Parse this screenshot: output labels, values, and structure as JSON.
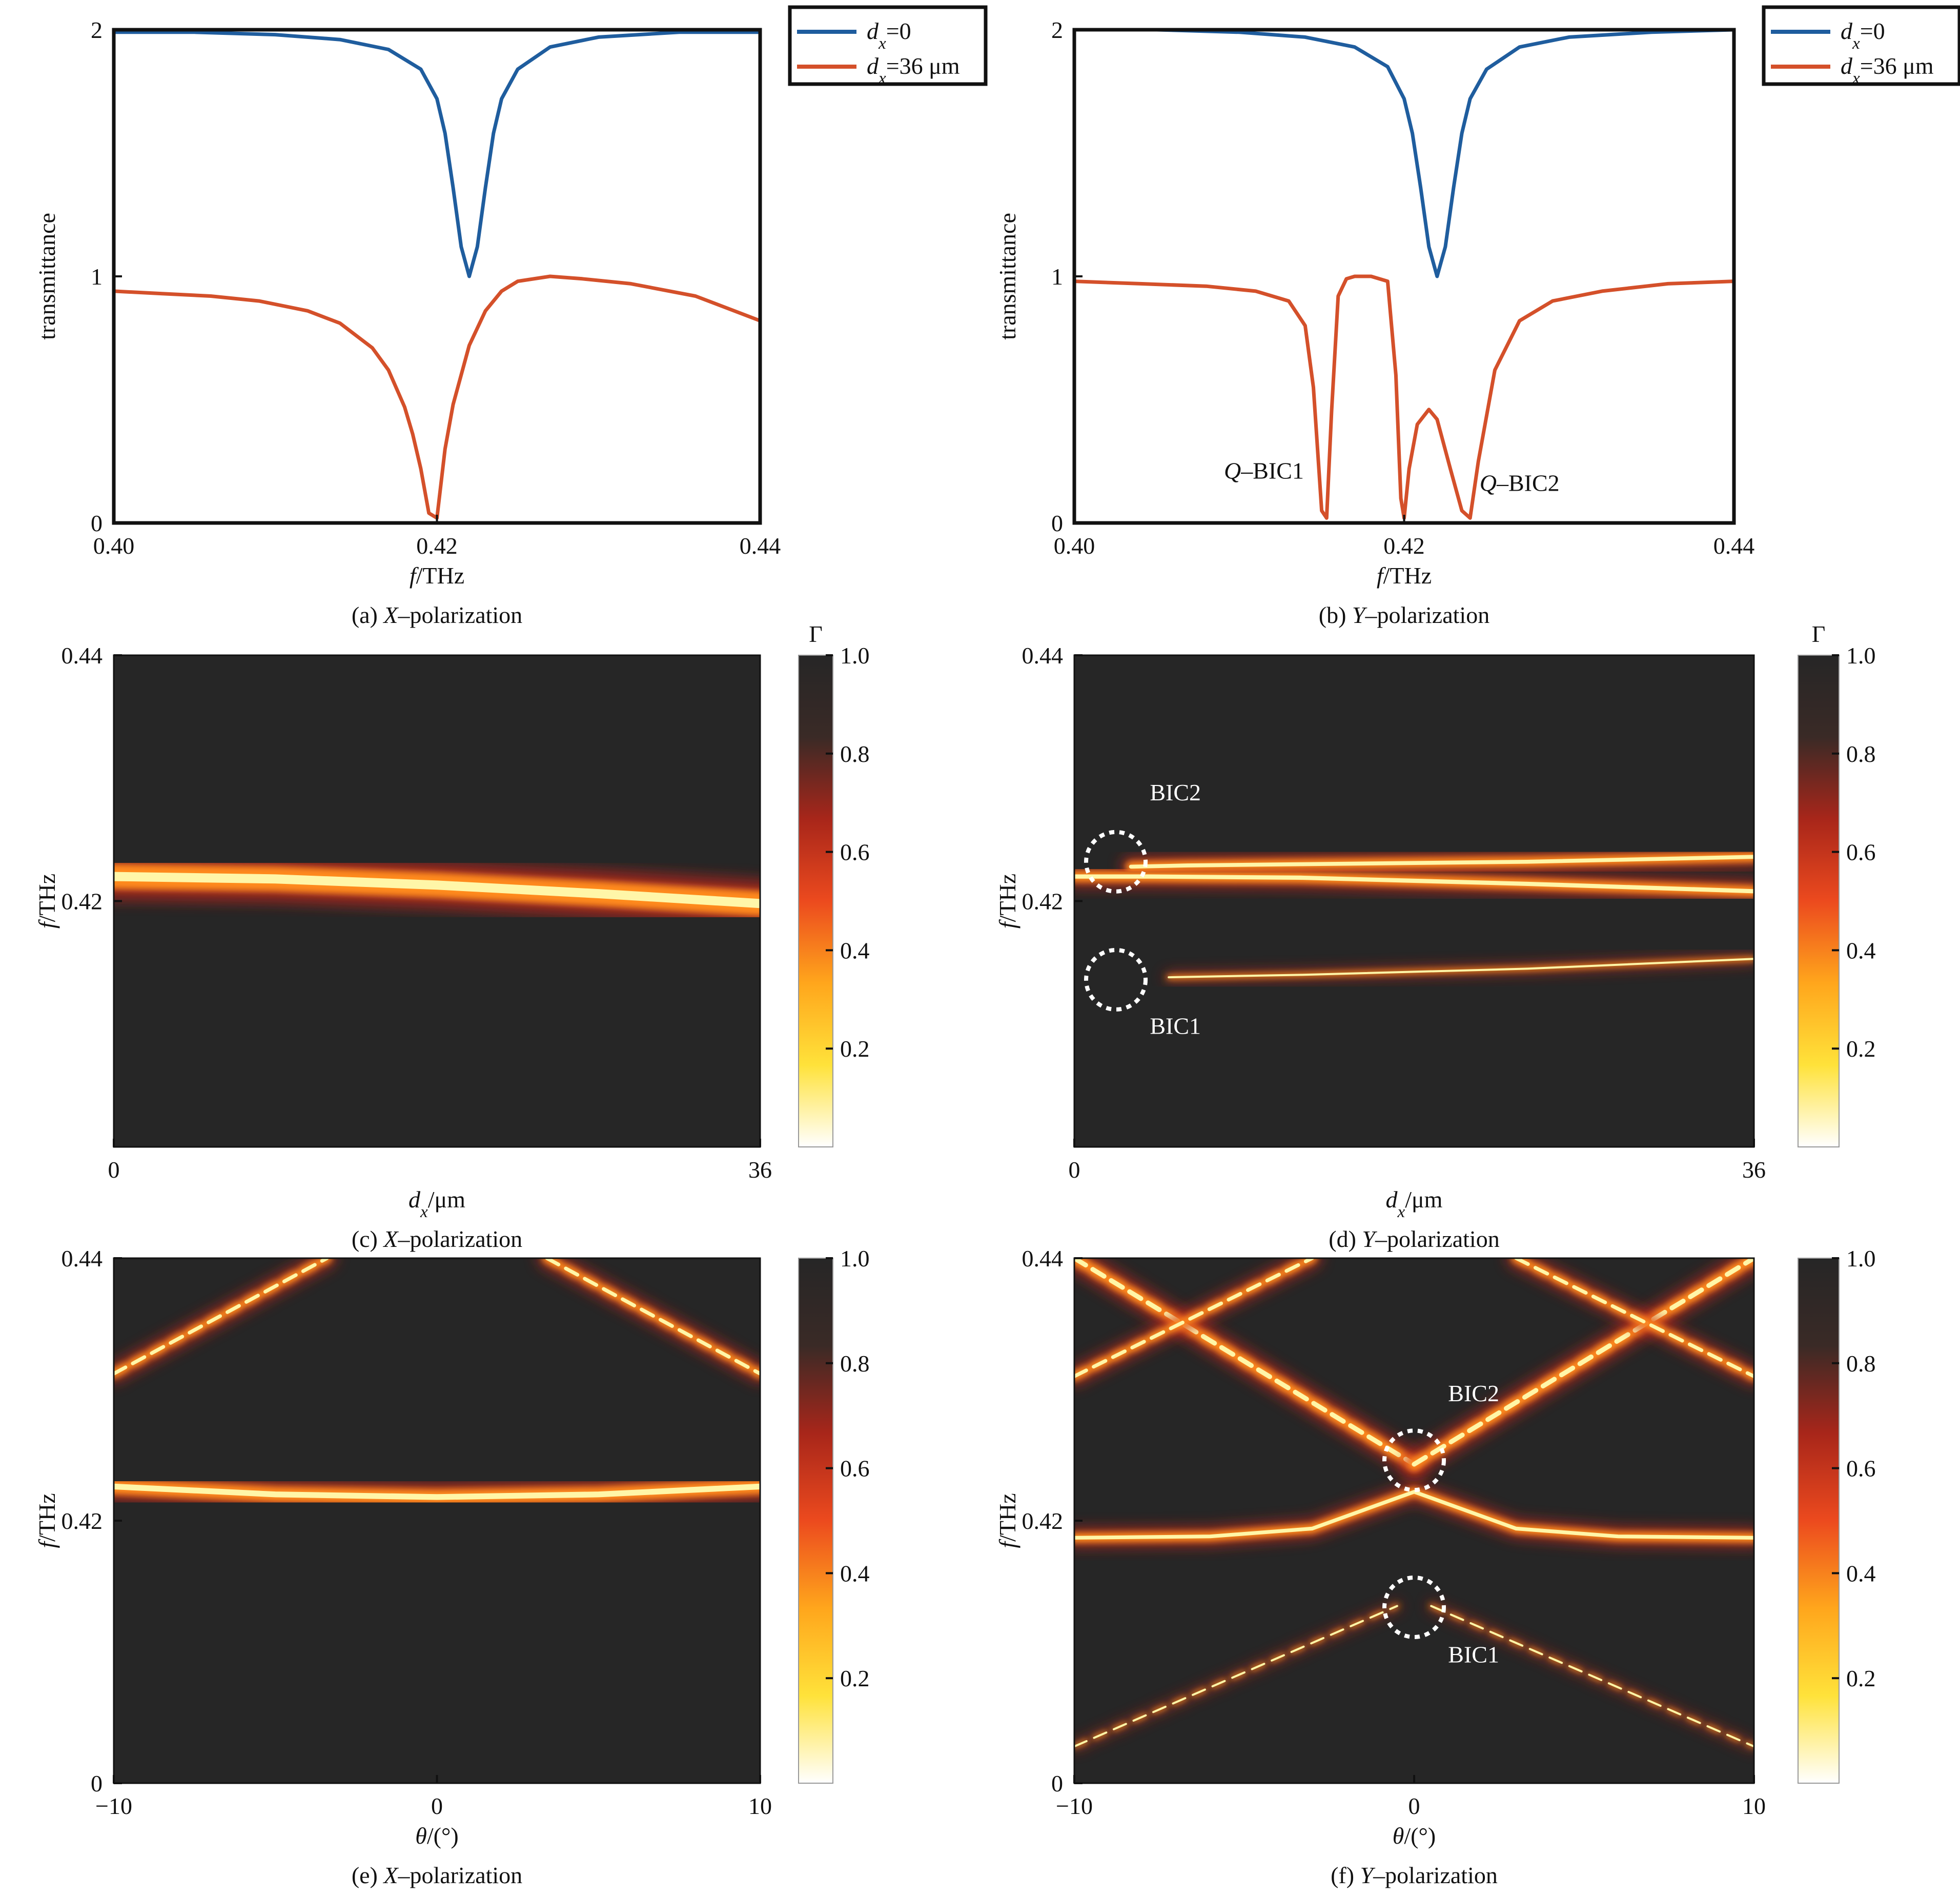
{
  "colors": {
    "blue": "#1f5d9e",
    "orange": "#d4502a",
    "map_black": "#262626"
  },
  "colorbar": {
    "symbol": "Γ",
    "ticks": [
      "1.0",
      "0.8",
      "0.6",
      "0.4",
      "0.2"
    ],
    "colormap": [
      "#ffffff",
      "#ffe23a",
      "#ffa61c",
      "#ec4a1e",
      "#a8261a",
      "#3a2a26",
      "#262626"
    ]
  },
  "chart_data": [
    {
      "id": "a",
      "type": "line",
      "caption_prefix": "(a) ",
      "caption_italic": "X",
      "caption_suffix": "–polarization",
      "xlabel_italic": "f",
      "xlabel_rest": "/THz",
      "ylabel": "transmittance",
      "xlim": [
        0.4,
        0.44
      ],
      "ylim": [
        0,
        2
      ],
      "xticks": [
        "0.40",
        "0.42",
        "0.44"
      ],
      "yticks": [
        "0",
        "1",
        "2"
      ],
      "legend": {
        "position": "outside-top-right",
        "entries": [
          {
            "var": "d",
            "sub": "x",
            "rest": "=0",
            "color": "#1f5d9e"
          },
          {
            "var": "d",
            "sub": "x",
            "rest": "=36 μm",
            "color": "#d4502a"
          }
        ]
      },
      "series": [
        {
          "color": "#1f5d9e",
          "x": [
            0.4,
            0.405,
            0.41,
            0.414,
            0.417,
            0.419,
            0.42,
            0.4205,
            0.421,
            0.4215,
            0.422,
            0.4225,
            0.423,
            0.4235,
            0.424,
            0.425,
            0.427,
            0.43,
            0.435,
            0.44
          ],
          "y": [
            1.99,
            1.99,
            1.98,
            1.96,
            1.92,
            1.84,
            1.72,
            1.58,
            1.36,
            1.12,
            1.0,
            1.12,
            1.36,
            1.58,
            1.72,
            1.84,
            1.93,
            1.97,
            1.99,
            1.99
          ]
        },
        {
          "color": "#d4502a",
          "x": [
            0.4,
            0.403,
            0.406,
            0.409,
            0.412,
            0.414,
            0.416,
            0.417,
            0.418,
            0.4185,
            0.419,
            0.4195,
            0.42,
            0.4205,
            0.421,
            0.422,
            0.423,
            0.424,
            0.425,
            0.427,
            0.429,
            0.432,
            0.436,
            0.44
          ],
          "y": [
            0.94,
            0.93,
            0.92,
            0.9,
            0.86,
            0.81,
            0.71,
            0.62,
            0.47,
            0.36,
            0.22,
            0.04,
            0.02,
            0.3,
            0.48,
            0.72,
            0.86,
            0.94,
            0.98,
            1.0,
            0.99,
            0.97,
            0.92,
            0.82
          ]
        }
      ]
    },
    {
      "id": "b",
      "type": "line",
      "caption_prefix": "(b) ",
      "caption_italic": "Y",
      "caption_suffix": "–polarization",
      "xlabel_italic": "f",
      "xlabel_rest": "/THz",
      "ylabel": "transmittance",
      "xlim": [
        0.4,
        0.44
      ],
      "ylim": [
        0,
        2
      ],
      "xticks": [
        "0.40",
        "0.42",
        "0.44"
      ],
      "yticks": [
        "0",
        "1",
        "2"
      ],
      "legend": {
        "position": "outside-top-right",
        "entries": [
          {
            "var": "d",
            "sub": "x",
            "rest": "=0",
            "color": "#1f5d9e"
          },
          {
            "var": "d",
            "sub": "x",
            "rest": "=36 μm",
            "color": "#d4502a"
          }
        ]
      },
      "annotations": [
        {
          "italic": "Q",
          "rest": "–BIC1",
          "x": 0.4115,
          "y": 0.18
        },
        {
          "italic": "Q",
          "rest": "–BIC2",
          "x": 0.427,
          "y": 0.13
        }
      ],
      "series": [
        {
          "color": "#1f5d9e",
          "x": [
            0.4,
            0.405,
            0.41,
            0.414,
            0.417,
            0.419,
            0.42,
            0.4205,
            0.421,
            0.4215,
            0.422,
            0.4225,
            0.423,
            0.4235,
            0.424,
            0.425,
            0.427,
            0.43,
            0.435,
            0.44
          ],
          "y": [
            2.0,
            2.0,
            1.99,
            1.97,
            1.93,
            1.85,
            1.72,
            1.58,
            1.36,
            1.12,
            1.0,
            1.12,
            1.36,
            1.58,
            1.72,
            1.84,
            1.93,
            1.97,
            1.99,
            2.0
          ]
        },
        {
          "color": "#d4502a",
          "x": [
            0.4,
            0.404,
            0.408,
            0.411,
            0.413,
            0.414,
            0.4145,
            0.415,
            0.4153,
            0.4156,
            0.416,
            0.4165,
            0.417,
            0.418,
            0.419,
            0.4195,
            0.4198,
            0.42,
            0.4203,
            0.4208,
            0.4215,
            0.422,
            0.4228,
            0.4235,
            0.424,
            0.4245,
            0.4255,
            0.427,
            0.429,
            0.432,
            0.436,
            0.44
          ],
          "y": [
            0.98,
            0.97,
            0.96,
            0.94,
            0.9,
            0.8,
            0.55,
            0.05,
            0.02,
            0.45,
            0.92,
            0.99,
            1.0,
            1.0,
            0.98,
            0.6,
            0.1,
            0.02,
            0.22,
            0.4,
            0.46,
            0.42,
            0.22,
            0.05,
            0.02,
            0.25,
            0.62,
            0.82,
            0.9,
            0.94,
            0.97,
            0.98
          ]
        }
      ]
    },
    {
      "id": "c",
      "type": "heatmap",
      "caption_prefix": "(c) ",
      "caption_italic": "X",
      "caption_suffix": "–polarization",
      "xlabel_italic": "d",
      "xlabel_sub": "x",
      "xlabel_rest": "/μm",
      "ylabel_italic": "f",
      "ylabel_rest": "/THz",
      "xlim": [
        0,
        36
      ],
      "ylim": [
        0.4,
        0.44
      ],
      "xticks": [
        "0",
        "36"
      ],
      "yticks": [
        "0.42",
        "0.44"
      ],
      "colorbar_label": "Γ",
      "bands": [
        {
          "x": [
            0,
            9,
            18,
            27,
            36
          ],
          "y": [
            0.422,
            0.4218,
            0.4213,
            0.4206,
            0.4198
          ],
          "width": [
            0.0008,
            0.0009,
            0.0011,
            0.0016,
            0.0024
          ]
        }
      ]
    },
    {
      "id": "d",
      "type": "heatmap",
      "caption_prefix": "(d) ",
      "caption_italic": "Y",
      "caption_suffix": "–polarization",
      "xlabel_italic": "d",
      "xlabel_sub": "x",
      "xlabel_rest": "/μm",
      "ylabel_italic": "f",
      "ylabel_rest": "/THz",
      "xlim": [
        0,
        36
      ],
      "ylim": [
        0.4,
        0.44
      ],
      "xticks": [
        "0",
        "36"
      ],
      "yticks": [
        "0.42",
        "0.44"
      ],
      "colorbar_label": "Γ",
      "annotations": [
        {
          "text": "BIC2",
          "x": 4.0,
          "y": 0.4282
        },
        {
          "text": "BIC1",
          "x": 4.0,
          "y": 0.4092
        }
      ],
      "circles": [
        {
          "x": 2.2,
          "y": 0.4232
        },
        {
          "x": 2.2,
          "y": 0.4136
        }
      ],
      "bands": [
        {
          "x": [
            0,
            4,
            12,
            24,
            36
          ],
          "y": [
            0.422,
            0.422,
            0.4219,
            0.4214,
            0.4208
          ],
          "width": [
            0.0007,
            0.0006,
            0.0005,
            0.0006,
            0.0007
          ]
        },
        {
          "x": [
            3,
            6,
            12,
            24,
            36
          ],
          "y": [
            0.4228,
            0.4229,
            0.423,
            0.4232,
            0.4236
          ],
          "width": [
            0.0001,
            0.0002,
            0.0004,
            0.0008,
            0.0014
          ]
        },
        {
          "x": [
            5,
            12,
            24,
            36
          ],
          "y": [
            0.4138,
            0.414,
            0.4145,
            0.4153
          ],
          "width": [
            0.0001,
            0.0002,
            0.0003,
            0.0004
          ]
        }
      ]
    },
    {
      "id": "e",
      "type": "heatmap",
      "caption_prefix": "(e) ",
      "caption_italic": "X",
      "caption_suffix": "–polarization",
      "xlabel_italic": "θ",
      "xlabel_rest": "/(°)",
      "ylabel_italic": "f",
      "ylabel_rest": "/THz",
      "xlim": [
        -10,
        10
      ],
      "ylim": [
        0.4,
        0.44
      ],
      "xticks": [
        "−10",
        "0",
        "10"
      ],
      "yticks": [
        "0",
        "0.42",
        "0.44"
      ],
      "bands": [
        {
          "x": [
            -10,
            -5,
            0,
            5,
            10
          ],
          "y": [
            0.4226,
            0.422,
            0.4218,
            0.422,
            0.4226
          ],
          "width": [
            0.0008,
            0.0008,
            0.0008,
            0.0008,
            0.0008
          ]
        },
        {
          "x": [
            -10,
            -3.4
          ],
          "y": [
            0.4312,
            0.44
          ],
          "width": [
            0.0005,
            0.0005
          ],
          "dotted": true
        },
        {
          "x": [
            3.4,
            10
          ],
          "y": [
            0.44,
            0.4312
          ],
          "width": [
            0.0005,
            0.0005
          ],
          "dotted": true
        }
      ]
    },
    {
      "id": "f",
      "type": "heatmap",
      "caption_prefix": "(f) ",
      "caption_italic": "Y",
      "caption_suffix": "–polarization",
      "xlabel_italic": "θ",
      "xlabel_rest": "/(°)",
      "ylabel_italic": "f",
      "ylabel_rest": "/THz",
      "xlim": [
        -10,
        10
      ],
      "ylim": [
        0.4,
        0.44
      ],
      "xticks": [
        "−10",
        "0",
        "10"
      ],
      "yticks": [
        "0",
        "0.42",
        "0.44"
      ],
      "annotations": [
        {
          "text": "BIC2",
          "x": 1.0,
          "y": 0.4291
        },
        {
          "text": "BIC1",
          "x": 1.0,
          "y": 0.4092
        }
      ],
      "circles": [
        {
          "x": 0.0,
          "y": 0.4246
        },
        {
          "x": 0.0,
          "y": 0.4134
        }
      ],
      "bands": [
        {
          "x": [
            -10,
            -6,
            -3,
            -1.5,
            0,
            1.5,
            3,
            6,
            10
          ],
          "y": [
            0.4187,
            0.4188,
            0.4194,
            0.4208,
            0.4222,
            0.4208,
            0.4194,
            0.4188,
            0.4187
          ],
          "width": [
            0.0004,
            0.0004,
            0.0005,
            0.0006,
            0.0008,
            0.0006,
            0.0005,
            0.0004,
            0.0004
          ]
        },
        {
          "x": [
            -10,
            0
          ],
          "y": [
            0.44,
            0.4243
          ],
          "width": [
            0.0007,
            0.0006
          ],
          "dotted": true
        },
        {
          "x": [
            0,
            10
          ],
          "y": [
            0.4243,
            0.44
          ],
          "width": [
            0.0006,
            0.0007
          ],
          "dotted": true
        },
        {
          "x": [
            -10,
            -3.0
          ],
          "y": [
            0.431,
            0.44
          ],
          "width": [
            0.0005,
            0.0005
          ],
          "dotted": true
        },
        {
          "x": [
            3.0,
            10
          ],
          "y": [
            0.44,
            0.431
          ],
          "width": [
            0.0005,
            0.0005
          ],
          "dotted": true
        },
        {
          "x": [
            -10,
            -0.5
          ],
          "y": [
            0.4028,
            0.4135
          ],
          "width": [
            0.0003,
            0.0001
          ],
          "dotted": true
        },
        {
          "x": [
            0.5,
            10
          ],
          "y": [
            0.4135,
            0.4028
          ],
          "width": [
            0.0001,
            0.0003
          ],
          "dotted": true
        }
      ]
    }
  ]
}
